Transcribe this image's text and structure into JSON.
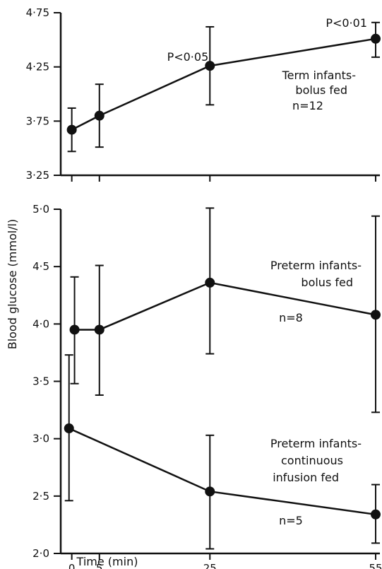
{
  "chart_data": [
    {
      "type": "line",
      "panel": "top",
      "x": [
        0,
        5,
        25,
        55
      ],
      "xlim": [
        -2,
        55
      ],
      "ylim": [
        3.25,
        4.75
      ],
      "yticks": [
        "3·25",
        "3·75",
        "4·25",
        "4·75"
      ],
      "ytick_values": [
        3.25,
        3.75,
        4.25,
        4.75
      ],
      "series": [
        {
          "values": [
            3.67,
            3.8,
            4.26,
            4.51
          ],
          "error": [
            [
              3.47,
              3.87
            ],
            [
              3.51,
              4.09
            ],
            [
              3.9,
              4.62
            ],
            [
              4.34,
              4.66
            ]
          ]
        }
      ],
      "annotations": [
        {
          "text": "P<0·05",
          "x": 25,
          "y": 4.26
        },
        {
          "text": "P<0·01",
          "x": 55,
          "y": 4.51
        }
      ],
      "labels": [
        "Term infants-",
        "bolus fed",
        "n=12"
      ]
    },
    {
      "type": "line",
      "panel": "bottom",
      "x": [
        0,
        5,
        25,
        55
      ],
      "xlim": [
        -2,
        55
      ],
      "ylim": [
        2.0,
        5.0
      ],
      "yticks": [
        "2·0",
        "2·5",
        "3·0",
        "3·5",
        "4·0",
        "4·5",
        "5·0"
      ],
      "ytick_values": [
        2.0,
        2.5,
        3.0,
        3.5,
        4.0,
        4.5,
        5.0
      ],
      "xticks": [
        "0",
        "5",
        "25",
        "55"
      ],
      "xtick_values": [
        0,
        5,
        25,
        55
      ],
      "xlabel": "Time (min)",
      "ylabel": "Blood glucose (mmol/l)",
      "series": [
        {
          "labels": [
            "Preterm infants-",
            "bolus fed",
            "n=8"
          ],
          "x": [
            0.5,
            5,
            25,
            55
          ],
          "values": [
            3.95,
            3.95,
            4.36,
            4.08
          ],
          "error": [
            [
              3.48,
              4.41
            ],
            [
              3.38,
              4.51
            ],
            [
              3.74,
              5.01
            ],
            [
              3.23,
              4.94
            ]
          ]
        },
        {
          "labels": [
            "Preterm infants-",
            "continuous",
            "infusion fed",
            "n=5"
          ],
          "x": [
            -0.5,
            25,
            55
          ],
          "values": [
            3.09,
            2.54,
            2.34
          ],
          "error": [
            [
              2.46,
              3.73
            ],
            [
              2.04,
              3.03
            ],
            [
              2.09,
              2.6
            ]
          ]
        }
      ]
    }
  ]
}
